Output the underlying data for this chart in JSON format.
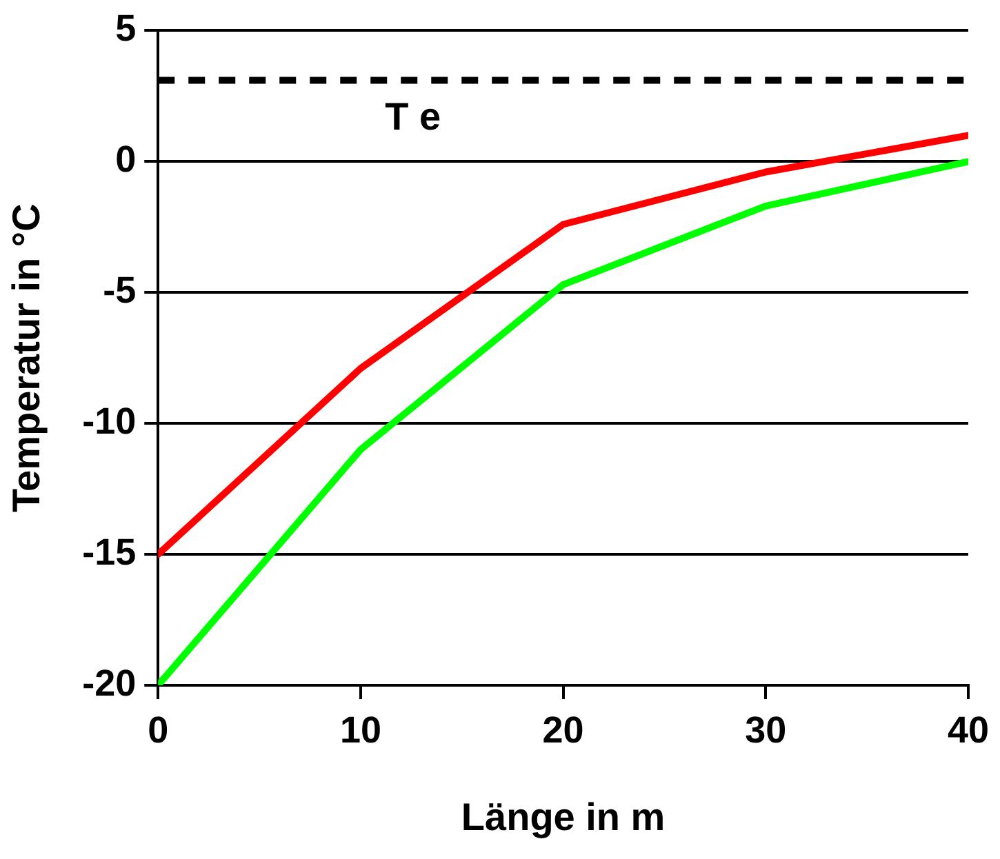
{
  "chart_data": {
    "type": "line",
    "xlabel": "Länge in m",
    "ylabel": "Temperatur in °C",
    "x": [
      0,
      10,
      20,
      30,
      40
    ],
    "series": [
      {
        "color": "#ff0000",
        "values": [
          -15,
          -7.9,
          -2.4,
          -0.4,
          1.0
        ]
      },
      {
        "color": "#00ff00",
        "values": [
          -20,
          -11,
          -4.7,
          -1.7,
          0
        ]
      }
    ],
    "xlim": [
      0,
      40
    ],
    "xticks": [
      0,
      10,
      20,
      30,
      40
    ],
    "ylim": [
      -20,
      5
    ],
    "yticks": [
      -20,
      -15,
      -10,
      -5,
      0,
      5
    ],
    "ref_lines": [
      {
        "axis": "y",
        "value": 3.1,
        "label": "T e",
        "color": "#000000",
        "line_style": "dashed"
      }
    ],
    "grid": "y",
    "legend": false,
    "marker": "none",
    "line_style": "solid"
  }
}
